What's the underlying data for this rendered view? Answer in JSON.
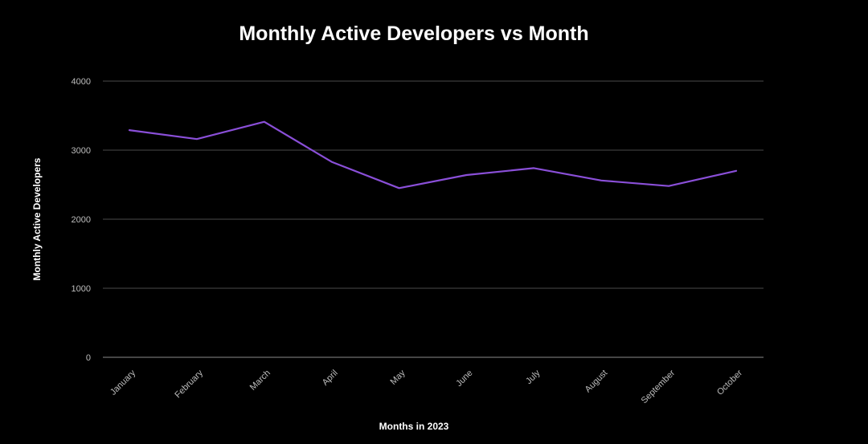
{
  "chart_data": {
    "type": "line",
    "title": "Monthly Active Developers vs Month",
    "xlabel": "Months in 2023",
    "ylabel": "Monthly Active Developers",
    "categories": [
      "January",
      "February",
      "March",
      "April",
      "May",
      "June",
      "July",
      "August",
      "September",
      "October"
    ],
    "series": [
      {
        "name": "Monthly Active Developers",
        "color": "#8a4fd8",
        "values": [
          3290,
          3160,
          3410,
          2830,
          2450,
          2640,
          2740,
          2560,
          2480,
          2700
        ]
      }
    ],
    "ylim": [
      0,
      4000
    ],
    "yticks": [
      0,
      1000,
      2000,
      3000,
      4000
    ],
    "grid": true,
    "background": "#000000"
  }
}
